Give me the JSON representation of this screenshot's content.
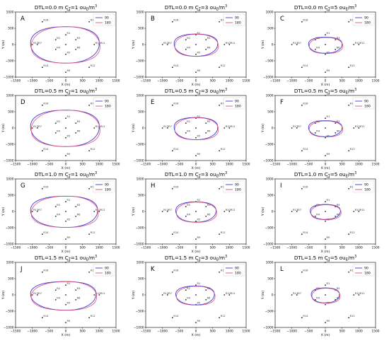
{
  "chart_data": [
    {
      "type": "line",
      "panel": "A",
      "dtl": "DTL=0.0 m",
      "ct_prefix": "C",
      "ct_sub": "T",
      "ct_value": "=1 ou",
      "ct_unit_sub": "E",
      "ct_unit": "/m",
      "ct_exp": "3",
      "xlabel": "X (m)",
      "ylabel": "Y (m)",
      "xlim": [
        -1500,
        1500
      ],
      "ylim": [
        -1000,
        1000
      ],
      "xticks": [
        "−1500",
        "−1000",
        "−500",
        "0",
        "500",
        "1000",
        "1500"
      ],
      "yticks": [
        "−1000",
        "−500",
        "0",
        "500",
        "1000"
      ],
      "legend": [
        "90",
        "180"
      ],
      "shape": {
        "a_right": 1000,
        "a_left": 1050,
        "b_top": 560,
        "b_bot": 560
      },
      "series": [
        {
          "name": "90",
          "color": "#3b3bd6"
        },
        {
          "name": "180",
          "color": "#e0507a"
        }
      ],
      "receptors": [
        {
          "id": "R1",
          "x": 0,
          "y": 300
        },
        {
          "id": "R2",
          "x": -300,
          "y": 150
        },
        {
          "id": "R3",
          "x": 300,
          "y": 150
        },
        {
          "id": "R4",
          "x": -300,
          "y": -150
        },
        {
          "id": "R5",
          "x": 0,
          "y": -300
        },
        {
          "id": "R6",
          "x": 300,
          "y": -150
        },
        {
          "id": "R7",
          "x": -850,
          "y": 0
        },
        {
          "id": "R8",
          "x": 0,
          "y": 1000
        },
        {
          "id": "R9",
          "x": 0,
          "y": -850
        },
        {
          "id": "R10",
          "x": 850,
          "y": 0
        },
        {
          "id": "R11",
          "x": 1000,
          "y": 0
        },
        {
          "id": "R12",
          "x": 700,
          "y": -700
        },
        {
          "id": "R13",
          "x": -1000,
          "y": 0
        },
        {
          "id": "R14",
          "x": -700,
          "y": -700
        },
        {
          "id": "R15",
          "x": 700,
          "y": 700
        },
        {
          "id": "R16",
          "x": -700,
          "y": 700
        }
      ]
    },
    {
      "type": "line",
      "panel": "B",
      "dtl": "DTL=0.0 m",
      "ct_prefix": "C",
      "ct_sub": "T",
      "ct_value": "=3 ou",
      "ct_unit_sub": "E",
      "ct_unit": "/m",
      "ct_exp": "3",
      "xlabel": "X (m)",
      "ylabel": "Y (m)",
      "xlim": [
        -1500,
        1500
      ],
      "ylim": [
        -1000,
        1000
      ],
      "xticks": [
        "−1500",
        "−1000",
        "−500",
        "0",
        "500",
        "1000",
        "1500"
      ],
      "yticks": [
        "−1000",
        "−500",
        "0",
        "500",
        "1000"
      ],
      "legend": [
        "90",
        "180"
      ],
      "shape": {
        "a_right": 650,
        "a_left": 650,
        "b_top": 330,
        "b_bot": 350
      },
      "series": [
        {
          "name": "90",
          "color": "#3b3bd6"
        },
        {
          "name": "180",
          "color": "#e0507a"
        }
      ]
    },
    {
      "type": "line",
      "panel": "C",
      "dtl": "DTL=0.0 m",
      "ct_prefix": "C",
      "ct_sub": "T",
      "ct_value": "=5 ou",
      "ct_unit_sub": "E",
      "ct_unit": "/m",
      "ct_exp": "3",
      "xlabel": "X (m)",
      "ylabel": "Y (m)",
      "xlim": [
        -1500,
        1500
      ],
      "ylim": [
        -1000,
        1000
      ],
      "xticks": [
        "−1500",
        "−1000",
        "−500",
        "0",
        "500",
        "1000",
        "1500"
      ],
      "yticks": [
        "−1000",
        "−500",
        "0",
        "500",
        "1000"
      ],
      "legend": [
        "90",
        "180"
      ],
      "shape": {
        "a_right": 500,
        "a_left": 500,
        "b_top": 230,
        "b_bot": 260
      },
      "series": [
        {
          "name": "90",
          "color": "#3b3bd6"
        },
        {
          "name": "180",
          "color": "#e0507a"
        }
      ]
    },
    {
      "type": "line",
      "panel": "D",
      "dtl": "DTL=0.5 m",
      "ct_prefix": "C",
      "ct_sub": "T",
      "ct_value": "=1 ou",
      "ct_unit_sub": "E",
      "ct_unit": "/m",
      "ct_exp": "3",
      "xlabel": "X (m)",
      "ylabel": "Y (m)",
      "xlim": [
        -1500,
        1500
      ],
      "ylim": [
        -1000,
        1000
      ],
      "xticks": [
        "−1500",
        "−1000",
        "−500",
        "0",
        "500",
        "1000",
        "1500"
      ],
      "yticks": [
        "−1000",
        "−500",
        "0",
        "500",
        "1000"
      ],
      "legend": [
        "90",
        "180"
      ],
      "shape": {
        "a_right": 1000,
        "a_left": 1050,
        "b_top": 560,
        "b_bot": 560
      },
      "series": [
        {
          "name": "90",
          "color": "#3b3bd6"
        },
        {
          "name": "180",
          "color": "#e0507a"
        }
      ]
    },
    {
      "type": "line",
      "panel": "E",
      "dtl": "DTL=0.5 m",
      "ct_prefix": "C",
      "ct_sub": "T",
      "ct_value": "=3 ou",
      "ct_unit_sub": "E",
      "ct_unit": "/m",
      "ct_exp": "3",
      "xlabel": "X (m)",
      "ylabel": "Y (m)",
      "xlim": [
        -1500,
        1500
      ],
      "ylim": [
        -1000,
        1000
      ],
      "xticks": [
        "−1500",
        "−1000",
        "−500",
        "0",
        "500",
        "1000",
        "1500"
      ],
      "yticks": [
        "−1000",
        "−500",
        "0",
        "500",
        "1000"
      ],
      "legend": [
        "90",
        "180"
      ],
      "shape": {
        "a_right": 650,
        "a_left": 650,
        "b_top": 330,
        "b_bot": 350
      },
      "series": [
        {
          "name": "90",
          "color": "#3b3bd6"
        },
        {
          "name": "180",
          "color": "#e0507a"
        }
      ]
    },
    {
      "type": "line",
      "panel": "F",
      "dtl": "DTL=0.5 m",
      "ct_prefix": "C",
      "ct_sub": "T",
      "ct_value": "=5 ou",
      "ct_unit_sub": "E",
      "ct_unit": "/m",
      "ct_exp": "3",
      "xlabel": "X (m)",
      "ylabel": "Y (m)",
      "xlim": [
        -1500,
        1500
      ],
      "ylim": [
        -1000,
        1000
      ],
      "xticks": [
        "−1500",
        "−1000",
        "−500",
        "0",
        "500",
        "1000",
        "1500"
      ],
      "yticks": [
        "−1000",
        "−500",
        "0",
        "500",
        "1000"
      ],
      "legend": [
        "90",
        "180"
      ],
      "shape": {
        "a_right": 500,
        "a_left": 500,
        "b_top": 230,
        "b_bot": 260
      },
      "series": [
        {
          "name": "90",
          "color": "#3b3bd6"
        },
        {
          "name": "180",
          "color": "#e0507a"
        }
      ]
    },
    {
      "type": "line",
      "panel": "G",
      "dtl": "DTL=1.0 m",
      "ct_prefix": "C",
      "ct_sub": "T",
      "ct_value": "=1 ou",
      "ct_unit_sub": "E",
      "ct_unit": "/m",
      "ct_exp": "3",
      "xlabel": "X (m)",
      "ylabel": "Y (m)",
      "xlim": [
        -1500,
        1500
      ],
      "ylim": [
        -1000,
        1000
      ],
      "xticks": [
        "−1500",
        "−1000",
        "−500",
        "0",
        "500",
        "1000",
        "1500"
      ],
      "yticks": [
        "−1000",
        "−500",
        "0",
        "500",
        "1000"
      ],
      "legend": [
        "90",
        "180"
      ],
      "shape": {
        "a_right": 950,
        "a_left": 1050,
        "b_top": 480,
        "b_bot": 480
      },
      "series": [
        {
          "name": "90",
          "color": "#3b3bd6"
        },
        {
          "name": "180",
          "color": "#e0507a"
        }
      ]
    },
    {
      "type": "line",
      "panel": "H",
      "dtl": "DTL=1.0 m",
      "ct_prefix": "C",
      "ct_sub": "T",
      "ct_value": "=3 ou",
      "ct_unit_sub": "E",
      "ct_unit": "/m",
      "ct_exp": "3",
      "xlabel": "X (m)",
      "ylabel": "Y (m)",
      "xlim": [
        -1500,
        1500
      ],
      "ylim": [
        -1000,
        1000
      ],
      "xticks": [
        "−1500",
        "−1000",
        "−500",
        "0",
        "500",
        "1000",
        "1500"
      ],
      "yticks": [
        "−1000",
        "−500",
        "0",
        "500",
        "1000"
      ],
      "legend": [
        "90",
        "180"
      ],
      "shape": {
        "a_right": 600,
        "a_left": 600,
        "b_top": 300,
        "b_bot": 320
      },
      "series": [
        {
          "name": "90",
          "color": "#3b3bd6"
        },
        {
          "name": "180",
          "color": "#e0507a"
        }
      ]
    },
    {
      "type": "line",
      "panel": "I",
      "dtl": "DTL=1.0 m",
      "ct_prefix": "C",
      "ct_sub": "T",
      "ct_value": "=5 ou",
      "ct_unit_sub": "E",
      "ct_unit": "/m",
      "ct_exp": "3",
      "xlabel": "X (m)",
      "ylabel": "Y (m)",
      "xlim": [
        -1500,
        1500
      ],
      "ylim": [
        -1000,
        1000
      ],
      "xticks": [
        "−1500",
        "−1000",
        "−500",
        "0",
        "500",
        "1000",
        "1500"
      ],
      "yticks": [
        "−1000",
        "−500",
        "0",
        "500",
        "1000"
      ],
      "legend": [
        "90",
        "180"
      ],
      "shape": {
        "a_right": 450,
        "a_left": 450,
        "b_top": 220,
        "b_bot": 240
      },
      "series": [
        {
          "name": "90",
          "color": "#3b3bd6"
        },
        {
          "name": "180",
          "color": "#e0507a"
        }
      ]
    },
    {
      "type": "line",
      "panel": "J",
      "dtl": "DTL=1.5 m",
      "ct_prefix": "C",
      "ct_sub": "T",
      "ct_value": "=1 ou",
      "ct_unit_sub": "E",
      "ct_unit": "/m",
      "ct_exp": "3",
      "xlabel": "X (m)",
      "ylabel": "Y (m)",
      "xlim": [
        -1500,
        1500
      ],
      "ylim": [
        -1000,
        1000
      ],
      "xticks": [
        "−1500",
        "−1000",
        "−500",
        "0",
        "500",
        "1000",
        "1500"
      ],
      "yticks": [
        "−1000",
        "−500",
        "0",
        "500",
        "1000"
      ],
      "legend": [
        "90",
        "180"
      ],
      "shape": {
        "a_right": 900,
        "a_left": 1050,
        "b_top": 420,
        "b_bot": 460
      },
      "series": [
        {
          "name": "90",
          "color": "#3b3bd6"
        },
        {
          "name": "180",
          "color": "#e0507a"
        }
      ]
    },
    {
      "type": "line",
      "panel": "K",
      "dtl": "DTL=1.5 m",
      "ct_prefix": "C",
      "ct_sub": "T",
      "ct_value": "=3 ou",
      "ct_unit_sub": "E",
      "ct_unit": "/m",
      "ct_exp": "3",
      "xlabel": "X (m)",
      "ylabel": "Y (m)",
      "xlim": [
        -1500,
        1500
      ],
      "ylim": [
        -1000,
        1000
      ],
      "xticks": [
        "−1500",
        "−1000",
        "−500",
        "0",
        "500",
        "1000",
        "1500"
      ],
      "yticks": [
        "−1000",
        "−500",
        "0",
        "500",
        "1000"
      ],
      "legend": [
        "90",
        "180"
      ],
      "shape": {
        "a_right": 550,
        "a_left": 600,
        "b_top": 280,
        "b_bot": 300
      },
      "series": [
        {
          "name": "90",
          "color": "#3b3bd6"
        },
        {
          "name": "180",
          "color": "#e0507a"
        }
      ]
    },
    {
      "type": "line",
      "panel": "L",
      "dtl": "DTL=1.5 m",
      "ct_prefix": "C",
      "ct_sub": "T",
      "ct_value": "=5 ou",
      "ct_unit_sub": "E",
      "ct_unit": "/m",
      "ct_exp": "3",
      "xlabel": "X (m)",
      "ylabel": "Y (m)",
      "xlim": [
        -1500,
        1500
      ],
      "ylim": [
        -1000,
        1000
      ],
      "xticks": [
        "−1500",
        "−1000",
        "−500",
        "0",
        "500",
        "1000",
        "1500"
      ],
      "yticks": [
        "−1000",
        "−500",
        "0",
        "500",
        "1000"
      ],
      "legend": [
        "90",
        "180"
      ],
      "shape": {
        "a_right": 420,
        "a_left": 420,
        "b_top": 220,
        "b_bot": 240
      },
      "series": [
        {
          "name": "90",
          "color": "#3b3bd6"
        },
        {
          "name": "180",
          "color": "#e0507a"
        }
      ]
    }
  ]
}
